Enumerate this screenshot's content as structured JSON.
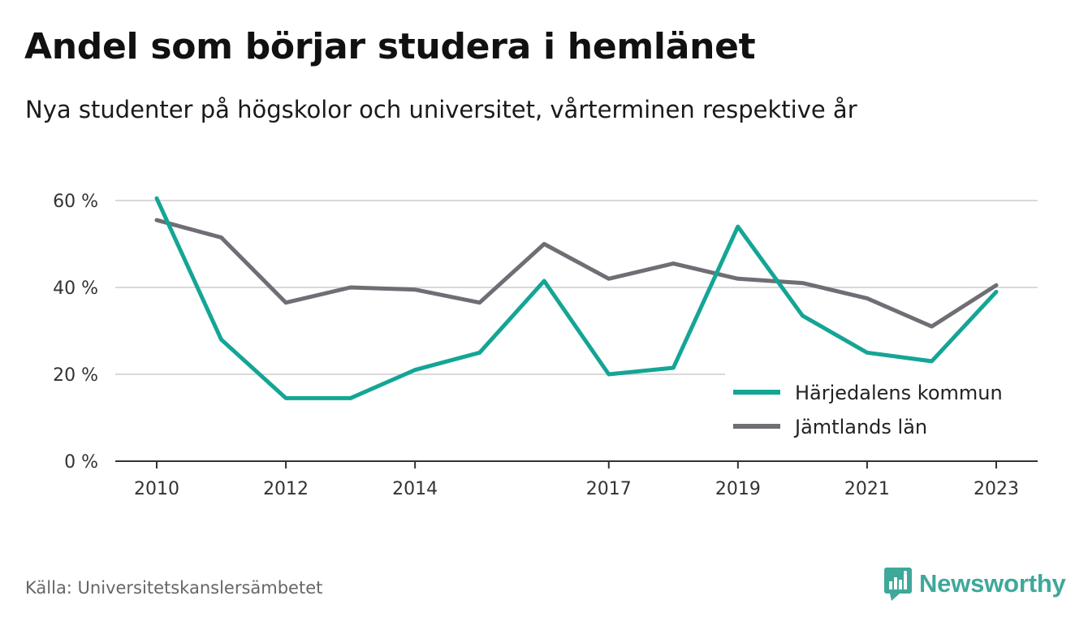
{
  "header": {
    "title": "Andel som börjar studera i hemlänet",
    "subtitle": "Nya studenter på högskolor och universitet, vårterminen respektive år"
  },
  "footer": {
    "source": "Källa: Universitetskanslersämbetet",
    "brand": "Newsworthy",
    "brand_icon": "newsworthy-logo-icon"
  },
  "colors": {
    "series_1": "#14a595",
    "series_2": "#6e6e74",
    "brand": "#3ea89a",
    "grid": "#d9d9d9",
    "axis": "#333333"
  },
  "chart_data": {
    "type": "line",
    "x": [
      2010,
      2011,
      2012,
      2013,
      2014,
      2015,
      2016,
      2017,
      2018,
      2019,
      2020,
      2021,
      2022,
      2023
    ],
    "x_tick_labels": [
      "2010",
      "2012",
      "2014",
      "2017",
      "2019",
      "2021",
      "2023"
    ],
    "y_tick_labels": [
      "0 %",
      "20 %",
      "40 %",
      "60 %"
    ],
    "y_ticks": [
      0,
      20,
      40,
      60
    ],
    "ylim": [
      0,
      60
    ],
    "grid": true,
    "legend_position": "bottom-right",
    "series": [
      {
        "name": "Härjedalens kommun",
        "color": "#14a595",
        "values": [
          60.5,
          28,
          14.5,
          14.5,
          21,
          25,
          41.5,
          20,
          21.5,
          54,
          33.5,
          25,
          23,
          39
        ]
      },
      {
        "name": "Jämtlands län",
        "color": "#6e6e74",
        "values": [
          55.5,
          51.5,
          36.5,
          40,
          39.5,
          36.5,
          50,
          42,
          45.5,
          42,
          41,
          37.5,
          31,
          40.5
        ]
      }
    ]
  }
}
